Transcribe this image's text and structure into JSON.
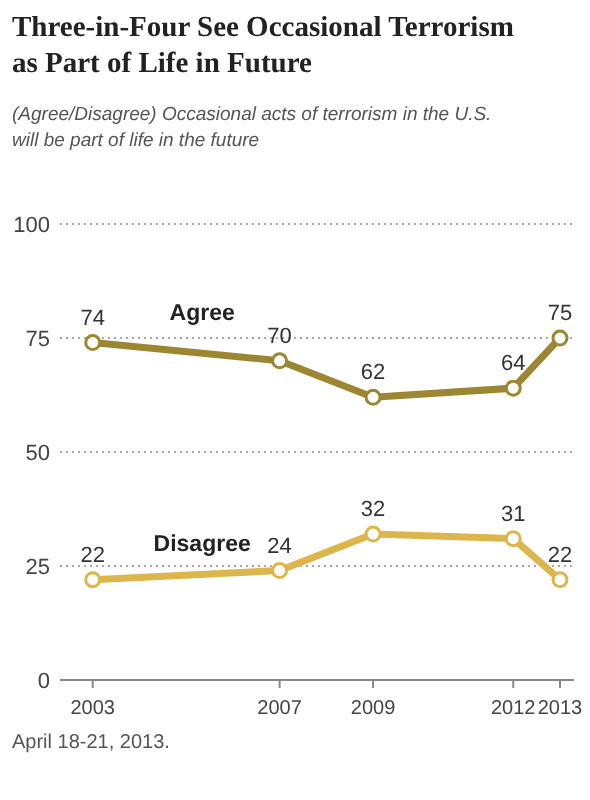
{
  "chart_data": {
    "type": "line",
    "title": "Three-in-Four See Occasional Terrorism as Part of Life in Future",
    "subtitle": "(Agree/Disagree) Occasional acts of terrorism in the U.S. will be part of life in the future",
    "x": [
      2003,
      2007,
      2009,
      2012,
      2013
    ],
    "xlim": [
      2002.3,
      2013.3
    ],
    "xticks": [
      2003,
      2007,
      2009,
      2012,
      2013
    ],
    "ylim": [
      0,
      100
    ],
    "yticks": [
      0,
      25,
      50,
      75,
      100
    ],
    "grid": "y",
    "marker": "circle",
    "line_style": "solid",
    "data_labels": true,
    "series": [
      {
        "name": "Agree",
        "color": "#9c8632",
        "values": [
          74,
          70,
          62,
          64,
          75
        ]
      },
      {
        "name": "Disagree",
        "color": "#dcb64c",
        "values": [
          22,
          24,
          32,
          31,
          22
        ]
      }
    ],
    "annotations": [
      "April 18-21, 2013."
    ]
  }
}
